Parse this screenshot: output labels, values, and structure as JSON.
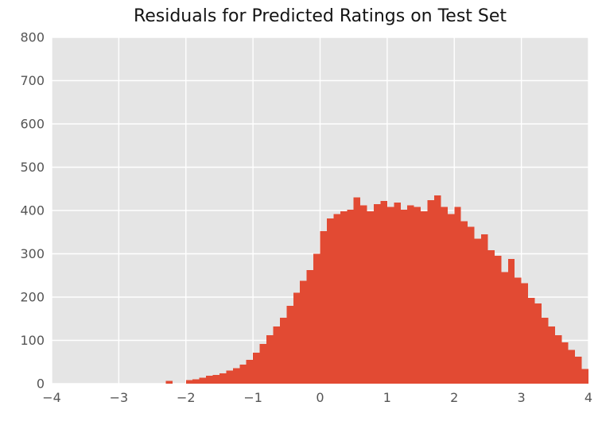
{
  "chart_data": {
    "type": "bar",
    "subtype": "histogram",
    "title": "Residuals for Predicted Ratings on Test Set",
    "xlabel": "",
    "ylabel": "",
    "xlim": [
      -4,
      4
    ],
    "ylim": [
      0,
      800
    ],
    "xticks": [
      -4,
      -3,
      -2,
      -1,
      0,
      1,
      2,
      3,
      4
    ],
    "yticks": [
      0,
      100,
      200,
      300,
      400,
      500,
      600,
      700,
      800
    ],
    "grid": true,
    "legend_position": "none",
    "bar_color": "#E24A33",
    "plot_bg": "#E5E5E5",
    "grid_color": "#FFFFFF",
    "tick_label_color": "#555555",
    "bin_width": 0.1,
    "bins_start": [
      -2.3,
      -2.2,
      -2.1,
      -2.0,
      -1.9,
      -1.8,
      -1.7,
      -1.6,
      -1.5,
      -1.4,
      -1.3,
      -1.2,
      -1.1,
      -1.0,
      -0.9,
      -0.8,
      -0.7,
      -0.6,
      -0.5,
      -0.4,
      -0.3,
      -0.2,
      -0.1,
      0.0,
      0.1,
      0.2,
      0.3,
      0.4,
      0.5,
      0.6,
      0.7,
      0.8,
      0.9,
      1.0,
      1.1,
      1.2,
      1.3,
      1.4,
      1.5,
      1.6,
      1.7,
      1.8,
      1.9,
      2.0,
      2.1,
      2.2,
      2.3,
      2.4,
      2.5,
      2.6,
      2.7,
      2.8,
      2.9,
      3.0,
      3.1,
      3.2,
      3.3,
      3.4,
      3.5,
      3.6,
      3.7,
      3.8,
      3.9
    ],
    "counts": [
      6,
      0,
      0,
      8,
      10,
      14,
      18,
      20,
      24,
      30,
      36,
      44,
      55,
      72,
      92,
      112,
      132,
      152,
      180,
      210,
      238,
      262,
      300,
      352,
      382,
      392,
      398,
      402,
      430,
      412,
      398,
      415,
      422,
      408,
      418,
      402,
      412,
      408,
      398,
      424,
      435,
      408,
      392,
      408,
      375,
      362,
      335,
      345,
      308,
      295,
      258,
      288,
      245,
      232,
      198,
      185,
      152,
      132,
      112,
      95,
      78,
      62,
      34
    ]
  }
}
